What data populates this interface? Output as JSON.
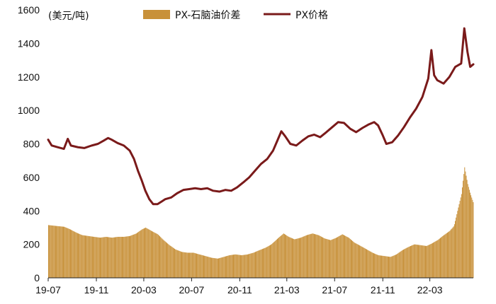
{
  "chart_data": {
    "type": "bar+line",
    "unit_label": "(美元/吨)",
    "legend_position": "top",
    "grid": false,
    "colors": {
      "spread": "#c8913a",
      "price": "#7a1a1a"
    },
    "ylim": [
      0,
      1600
    ],
    "yticks": [
      "0",
      "200",
      "400",
      "600",
      "800",
      "1000",
      "1200",
      "1400",
      "1600"
    ],
    "xlim": [
      "2019-07-01",
      "2022-06-20"
    ],
    "xticks": [
      {
        "date": "2019-07-01",
        "label": "19-07"
      },
      {
        "date": "2019-11-01",
        "label": "19-11"
      },
      {
        "date": "2020-03-01",
        "label": "20-03"
      },
      {
        "date": "2020-07-01",
        "label": "20-07"
      },
      {
        "date": "2020-11-01",
        "label": "20-11"
      },
      {
        "date": "2021-03-01",
        "label": "21-03"
      },
      {
        "date": "2021-07-01",
        "label": "21-07"
      },
      {
        "date": "2021-11-01",
        "label": "21-11"
      },
      {
        "date": "2022-03-01",
        "label": "22-03"
      }
    ],
    "series": [
      {
        "name": "PX-石脑油价差",
        "kind": "bar",
        "points": [
          [
            "2019-07-01",
            315
          ],
          [
            "2019-07-20",
            310
          ],
          [
            "2019-08-10",
            305
          ],
          [
            "2019-08-25",
            290
          ],
          [
            "2019-09-10",
            270
          ],
          [
            "2019-09-25",
            255
          ],
          [
            "2019-10-10",
            250
          ],
          [
            "2019-10-25",
            245
          ],
          [
            "2019-11-10",
            240
          ],
          [
            "2019-11-25",
            245
          ],
          [
            "2019-12-10",
            240
          ],
          [
            "2019-12-25",
            245
          ],
          [
            "2020-01-10",
            245
          ],
          [
            "2020-01-25",
            250
          ],
          [
            "2020-02-10",
            265
          ],
          [
            "2020-02-25",
            290
          ],
          [
            "2020-03-05",
            300
          ],
          [
            "2020-03-20",
            280
          ],
          [
            "2020-04-05",
            260
          ],
          [
            "2020-04-20",
            225
          ],
          [
            "2020-05-05",
            195
          ],
          [
            "2020-05-20",
            170
          ],
          [
            "2020-06-05",
            155
          ],
          [
            "2020-06-20",
            150
          ],
          [
            "2020-07-05",
            150
          ],
          [
            "2020-07-20",
            140
          ],
          [
            "2020-08-05",
            130
          ],
          [
            "2020-08-20",
            120
          ],
          [
            "2020-09-05",
            115
          ],
          [
            "2020-09-20",
            125
          ],
          [
            "2020-10-05",
            135
          ],
          [
            "2020-10-20",
            140
          ],
          [
            "2020-11-05",
            135
          ],
          [
            "2020-11-20",
            140
          ],
          [
            "2020-12-05",
            150
          ],
          [
            "2020-12-20",
            165
          ],
          [
            "2021-01-05",
            180
          ],
          [
            "2021-01-20",
            200
          ],
          [
            "2021-02-05",
            235
          ],
          [
            "2021-02-20",
            265
          ],
          [
            "2021-03-05",
            245
          ],
          [
            "2021-03-20",
            230
          ],
          [
            "2021-04-05",
            240
          ],
          [
            "2021-04-20",
            255
          ],
          [
            "2021-05-05",
            265
          ],
          [
            "2021-05-20",
            255
          ],
          [
            "2021-06-05",
            235
          ],
          [
            "2021-06-20",
            225
          ],
          [
            "2021-07-05",
            240
          ],
          [
            "2021-07-20",
            260
          ],
          [
            "2021-08-05",
            240
          ],
          [
            "2021-08-20",
            210
          ],
          [
            "2021-09-05",
            190
          ],
          [
            "2021-09-20",
            170
          ],
          [
            "2021-10-05",
            150
          ],
          [
            "2021-10-20",
            135
          ],
          [
            "2021-11-05",
            130
          ],
          [
            "2021-11-20",
            125
          ],
          [
            "2021-12-05",
            140
          ],
          [
            "2021-12-20",
            165
          ],
          [
            "2022-01-05",
            185
          ],
          [
            "2022-01-20",
            200
          ],
          [
            "2022-02-05",
            195
          ],
          [
            "2022-02-20",
            190
          ],
          [
            "2022-03-05",
            205
          ],
          [
            "2022-03-20",
            225
          ],
          [
            "2022-04-05",
            255
          ],
          [
            "2022-04-20",
            280
          ],
          [
            "2022-05-01",
            310
          ],
          [
            "2022-05-10",
            400
          ],
          [
            "2022-05-20",
            500
          ],
          [
            "2022-05-28",
            660
          ],
          [
            "2022-06-05",
            560
          ],
          [
            "2022-06-12",
            500
          ],
          [
            "2022-06-20",
            445
          ]
        ]
      },
      {
        "name": "PX价格",
        "kind": "line",
        "points": [
          [
            "2019-07-01",
            825
          ],
          [
            "2019-07-10",
            790
          ],
          [
            "2019-07-25",
            780
          ],
          [
            "2019-08-10",
            770
          ],
          [
            "2019-08-20",
            830
          ],
          [
            "2019-08-28",
            790
          ],
          [
            "2019-09-15",
            780
          ],
          [
            "2019-10-01",
            775
          ],
          [
            "2019-10-20",
            790
          ],
          [
            "2019-11-05",
            800
          ],
          [
            "2019-11-20",
            820
          ],
          [
            "2019-12-01",
            835
          ],
          [
            "2019-12-10",
            825
          ],
          [
            "2019-12-25",
            805
          ],
          [
            "2020-01-10",
            790
          ],
          [
            "2020-01-25",
            760
          ],
          [
            "2020-02-05",
            710
          ],
          [
            "2020-02-15",
            640
          ],
          [
            "2020-02-25",
            580
          ],
          [
            "2020-03-05",
            520
          ],
          [
            "2020-03-15",
            470
          ],
          [
            "2020-03-25",
            440
          ],
          [
            "2020-04-05",
            440
          ],
          [
            "2020-04-15",
            455
          ],
          [
            "2020-04-25",
            470
          ],
          [
            "2020-05-10",
            480
          ],
          [
            "2020-05-25",
            505
          ],
          [
            "2020-06-10",
            525
          ],
          [
            "2020-06-25",
            530
          ],
          [
            "2020-07-10",
            535
          ],
          [
            "2020-07-25",
            530
          ],
          [
            "2020-08-10",
            535
          ],
          [
            "2020-08-25",
            520
          ],
          [
            "2020-09-10",
            515
          ],
          [
            "2020-09-25",
            525
          ],
          [
            "2020-10-10",
            520
          ],
          [
            "2020-10-25",
            540
          ],
          [
            "2020-11-10",
            570
          ],
          [
            "2020-11-25",
            600
          ],
          [
            "2020-12-10",
            640
          ],
          [
            "2020-12-25",
            680
          ],
          [
            "2021-01-10",
            710
          ],
          [
            "2021-01-25",
            760
          ],
          [
            "2021-02-05",
            820
          ],
          [
            "2021-02-15",
            875
          ],
          [
            "2021-02-25",
            845
          ],
          [
            "2021-03-10",
            800
          ],
          [
            "2021-03-25",
            790
          ],
          [
            "2021-04-10",
            820
          ],
          [
            "2021-04-25",
            845
          ],
          [
            "2021-05-10",
            855
          ],
          [
            "2021-05-25",
            840
          ],
          [
            "2021-06-10",
            870
          ],
          [
            "2021-06-25",
            900
          ],
          [
            "2021-07-10",
            930
          ],
          [
            "2021-07-25",
            925
          ],
          [
            "2021-08-10",
            890
          ],
          [
            "2021-08-25",
            870
          ],
          [
            "2021-09-10",
            895
          ],
          [
            "2021-09-25",
            915
          ],
          [
            "2021-10-10",
            930
          ],
          [
            "2021-10-20",
            910
          ],
          [
            "2021-11-01",
            850
          ],
          [
            "2021-11-10",
            800
          ],
          [
            "2021-11-25",
            810
          ],
          [
            "2021-12-10",
            850
          ],
          [
            "2021-12-25",
            900
          ],
          [
            "2022-01-10",
            960
          ],
          [
            "2022-01-25",
            1010
          ],
          [
            "2022-02-10",
            1080
          ],
          [
            "2022-02-25",
            1190
          ],
          [
            "2022-03-05",
            1360
          ],
          [
            "2022-03-12",
            1210
          ],
          [
            "2022-03-20",
            1180
          ],
          [
            "2022-04-05",
            1160
          ],
          [
            "2022-04-20",
            1200
          ],
          [
            "2022-05-05",
            1260
          ],
          [
            "2022-05-20",
            1280
          ],
          [
            "2022-05-28",
            1490
          ],
          [
            "2022-06-05",
            1350
          ],
          [
            "2022-06-12",
            1260
          ],
          [
            "2022-06-20",
            1275
          ]
        ]
      }
    ]
  }
}
